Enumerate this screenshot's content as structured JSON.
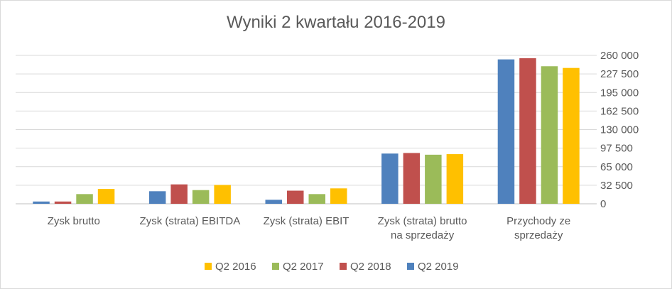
{
  "chart_data": {
    "type": "bar",
    "title": "Wyniki 2 kwartału 2016-2019",
    "xlabel": "",
    "ylabel": "",
    "ylim": [
      0,
      260000
    ],
    "y_axis_position": "right",
    "yticks": [
      "260 000",
      "227 500",
      "195 000",
      "162 500",
      "130 000",
      "97 500",
      "65 000",
      "32 500",
      "0"
    ],
    "categories": [
      [
        "Zysk brutto"
      ],
      [
        "Zysk (strata) EBITDA"
      ],
      [
        "Zysk (strata) EBIT"
      ],
      [
        "Zysk (strata) brutto",
        "na sprzedaży"
      ],
      [
        "Przychody ze",
        "sprzedaży"
      ]
    ],
    "series": [
      {
        "name": "Q2 2019",
        "color": "#4f81bd",
        "values": [
          4000,
          22000,
          7000,
          88000,
          253000
        ]
      },
      {
        "name": "Q2 2018",
        "color": "#c0504d",
        "values": [
          4000,
          34000,
          23000,
          89000,
          255000
        ]
      },
      {
        "name": "Q2 2017",
        "color": "#9bbb59",
        "values": [
          17000,
          24000,
          17000,
          86000,
          241000
        ]
      },
      {
        "name": "Q2 2016",
        "color": "#ffc000",
        "values": [
          26000,
          33000,
          27000,
          87000,
          238000
        ]
      }
    ],
    "legend_order": [
      "Q2 2016",
      "Q2 2017",
      "Q2 2018",
      "Q2 2019"
    ],
    "legend_position": "bottom",
    "grid": true
  }
}
